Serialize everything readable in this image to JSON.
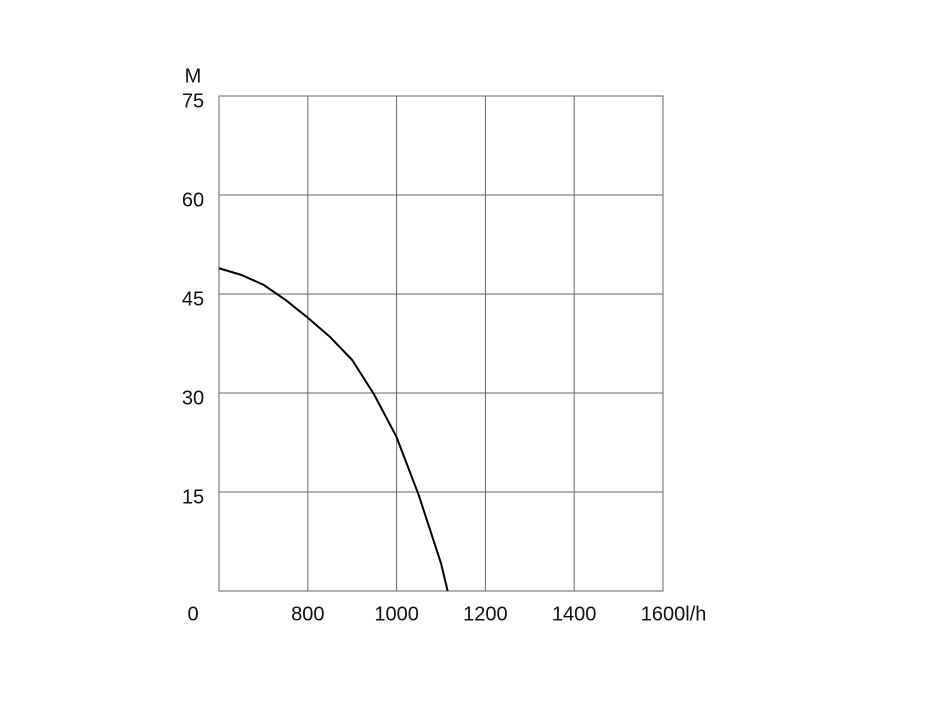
{
  "chart_data": {
    "type": "line",
    "x_label": "l/h",
    "y_label": "M",
    "x": [
      600,
      650,
      700,
      750,
      800,
      850,
      900,
      950,
      1000,
      1050,
      1100,
      1115
    ],
    "series": [
      {
        "color": "#000000",
        "values": [
          48.9,
          47.9,
          46.4,
          44.1,
          41.4,
          38.5,
          35,
          29.7,
          23.3,
          14.5,
          4.2,
          0
        ]
      }
    ],
    "xlim": [
      600,
      1600
    ],
    "xticks": [
      800,
      1000,
      1200,
      1400,
      1600
    ],
    "ylim": [
      0,
      75
    ],
    "yticks": [
      0,
      15,
      30,
      45,
      60,
      75
    ],
    "grid": true
  }
}
